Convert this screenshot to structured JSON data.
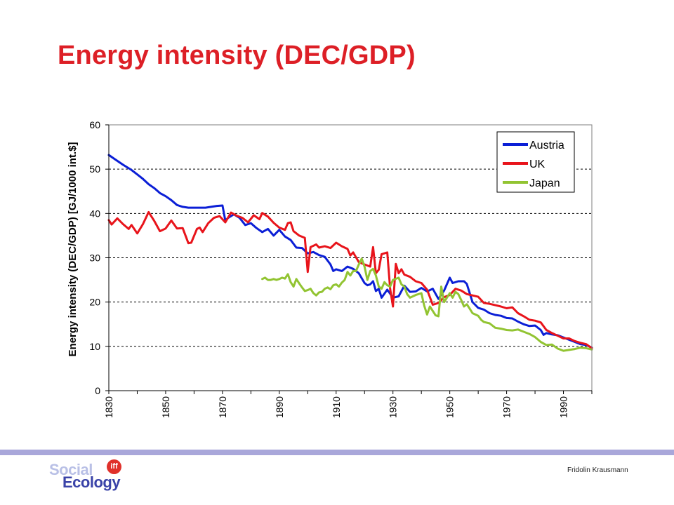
{
  "slide": {
    "title": "Energy intensity (DEC/GDP)",
    "author": "Fridolin Krausmann",
    "logo": {
      "line1": "Social",
      "line2": "Ecology",
      "badge": "iff"
    },
    "footer_bar_color": "#a9a7da",
    "title_color": "#dd1f26"
  },
  "chart_data": {
    "type": "line",
    "title": "",
    "xlabel": "",
    "ylabel": "Energy intensity (DEC/GDP) [GJ/1000 int.$]",
    "xlim": [
      1830,
      2000
    ],
    "ylim": [
      0,
      60
    ],
    "x_ticks": [
      1830,
      1850,
      1870,
      1890,
      1910,
      1930,
      1950,
      1970,
      1990
    ],
    "y_ticks": [
      0,
      10,
      20,
      30,
      40,
      50,
      60
    ],
    "grid": "horizontal-dashed",
    "legend": "top-right",
    "series": [
      {
        "name": "Austria",
        "color": "#0b1fd6",
        "points": [
          [
            1830,
            53.2
          ],
          [
            1832,
            52.3
          ],
          [
            1835,
            51.0
          ],
          [
            1838,
            49.8
          ],
          [
            1840,
            48.8
          ],
          [
            1842,
            47.8
          ],
          [
            1844,
            46.6
          ],
          [
            1846,
            45.7
          ],
          [
            1848,
            44.6
          ],
          [
            1850,
            43.9
          ],
          [
            1852,
            43.0
          ],
          [
            1854,
            41.9
          ],
          [
            1856,
            41.5
          ],
          [
            1858,
            41.3
          ],
          [
            1860,
            41.3
          ],
          [
            1862,
            41.3
          ],
          [
            1864,
            41.3
          ],
          [
            1866,
            41.5
          ],
          [
            1868,
            41.7
          ],
          [
            1870,
            41.8
          ],
          [
            1871,
            38.4
          ],
          [
            1872,
            39.0
          ],
          [
            1874,
            39.8
          ],
          [
            1876,
            39.0
          ],
          [
            1878,
            37.4
          ],
          [
            1880,
            37.8
          ],
          [
            1882,
            36.7
          ],
          [
            1884,
            35.8
          ],
          [
            1886,
            36.5
          ],
          [
            1888,
            35.0
          ],
          [
            1890,
            36.3
          ],
          [
            1892,
            34.8
          ],
          [
            1894,
            34.0
          ],
          [
            1896,
            32.3
          ],
          [
            1898,
            32.2
          ],
          [
            1900,
            31.0
          ],
          [
            1902,
            31.3
          ],
          [
            1904,
            30.6
          ],
          [
            1906,
            30.2
          ],
          [
            1908,
            28.5
          ],
          [
            1909,
            27.0
          ],
          [
            1910,
            27.4
          ],
          [
            1912,
            27.0
          ],
          [
            1914,
            28.0
          ],
          [
            1916,
            27.5
          ],
          [
            1918,
            26.5
          ],
          [
            1920,
            24.3
          ],
          [
            1921,
            23.8
          ],
          [
            1922,
            24.0
          ],
          [
            1923,
            24.7
          ],
          [
            1924,
            22.5
          ],
          [
            1925,
            23.0
          ],
          [
            1926,
            21.0
          ],
          [
            1928,
            22.8
          ],
          [
            1930,
            21.0
          ],
          [
            1932,
            21.3
          ],
          [
            1934,
            23.7
          ],
          [
            1936,
            22.3
          ],
          [
            1938,
            22.4
          ],
          [
            1940,
            23.2
          ],
          [
            1942,
            22.4
          ],
          [
            1944,
            23.0
          ],
          [
            1946,
            20.7
          ],
          [
            1948,
            22.6
          ],
          [
            1950,
            25.5
          ],
          [
            1951,
            24.3
          ],
          [
            1953,
            24.7
          ],
          [
            1955,
            24.7
          ],
          [
            1956,
            24.1
          ],
          [
            1958,
            20.0
          ],
          [
            1960,
            18.7
          ],
          [
            1962,
            18.3
          ],
          [
            1964,
            17.5
          ],
          [
            1966,
            17.1
          ],
          [
            1968,
            16.9
          ],
          [
            1970,
            16.4
          ],
          [
            1972,
            16.3
          ],
          [
            1974,
            15.6
          ],
          [
            1976,
            15.0
          ],
          [
            1978,
            14.6
          ],
          [
            1980,
            14.7
          ],
          [
            1982,
            13.7
          ],
          [
            1983,
            12.6
          ],
          [
            1984,
            13.0
          ],
          [
            1986,
            12.7
          ],
          [
            1988,
            12.5
          ],
          [
            1990,
            12.0
          ],
          [
            1992,
            11.5
          ],
          [
            1994,
            11.0
          ],
          [
            1996,
            10.5
          ],
          [
            1998,
            10.3
          ],
          [
            2000,
            9.7
          ]
        ]
      },
      {
        "name": "UK",
        "color": "#e8141b",
        "points": [
          [
            1830,
            38.5
          ],
          [
            1831,
            37.5
          ],
          [
            1833,
            38.9
          ],
          [
            1835,
            37.6
          ],
          [
            1837,
            36.5
          ],
          [
            1838,
            37.4
          ],
          [
            1840,
            35.5
          ],
          [
            1842,
            37.6
          ],
          [
            1844,
            40.3
          ],
          [
            1846,
            38.3
          ],
          [
            1848,
            36.0
          ],
          [
            1850,
            36.6
          ],
          [
            1852,
            38.4
          ],
          [
            1854,
            36.6
          ],
          [
            1856,
            36.7
          ],
          [
            1858,
            33.3
          ],
          [
            1859,
            33.4
          ],
          [
            1861,
            36.5
          ],
          [
            1862,
            36.8
          ],
          [
            1863,
            35.8
          ],
          [
            1865,
            37.8
          ],
          [
            1867,
            39.0
          ],
          [
            1869,
            39.4
          ],
          [
            1871,
            38.0
          ],
          [
            1873,
            40.2
          ],
          [
            1875,
            39.5
          ],
          [
            1877,
            39.0
          ],
          [
            1879,
            38.0
          ],
          [
            1881,
            39.6
          ],
          [
            1883,
            38.7
          ],
          [
            1884,
            40.1
          ],
          [
            1886,
            39.3
          ],
          [
            1888,
            37.9
          ],
          [
            1890,
            36.8
          ],
          [
            1892,
            36.3
          ],
          [
            1893,
            37.8
          ],
          [
            1894,
            38.0
          ],
          [
            1895,
            36.0
          ],
          [
            1897,
            35.0
          ],
          [
            1899,
            34.5
          ],
          [
            1900,
            26.8
          ],
          [
            1901,
            32.4
          ],
          [
            1903,
            33.0
          ],
          [
            1904,
            32.3
          ],
          [
            1906,
            32.6
          ],
          [
            1908,
            32.2
          ],
          [
            1910,
            33.4
          ],
          [
            1912,
            32.6
          ],
          [
            1914,
            32.0
          ],
          [
            1915,
            30.5
          ],
          [
            1916,
            31.2
          ],
          [
            1918,
            29.0
          ],
          [
            1920,
            28.5
          ],
          [
            1922,
            28.0
          ],
          [
            1923,
            32.4
          ],
          [
            1924,
            26.5
          ],
          [
            1925,
            27.3
          ],
          [
            1926,
            30.8
          ],
          [
            1928,
            31.2
          ],
          [
            1929,
            23.0
          ],
          [
            1930,
            19.0
          ],
          [
            1931,
            28.6
          ],
          [
            1932,
            26.5
          ],
          [
            1933,
            27.4
          ],
          [
            1934,
            26.2
          ],
          [
            1936,
            25.7
          ],
          [
            1938,
            24.7
          ],
          [
            1940,
            24.3
          ],
          [
            1942,
            22.8
          ],
          [
            1944,
            19.4
          ],
          [
            1946,
            19.8
          ],
          [
            1948,
            21.1
          ],
          [
            1950,
            21.6
          ],
          [
            1952,
            23.0
          ],
          [
            1954,
            22.6
          ],
          [
            1956,
            21.8
          ],
          [
            1958,
            21.5
          ],
          [
            1960,
            21.2
          ],
          [
            1962,
            19.8
          ],
          [
            1964,
            19.6
          ],
          [
            1966,
            19.3
          ],
          [
            1968,
            19.0
          ],
          [
            1970,
            18.6
          ],
          [
            1972,
            18.8
          ],
          [
            1974,
            17.5
          ],
          [
            1976,
            16.8
          ],
          [
            1978,
            16.0
          ],
          [
            1980,
            15.8
          ],
          [
            1982,
            15.4
          ],
          [
            1984,
            13.7
          ],
          [
            1986,
            13.0
          ],
          [
            1988,
            12.4
          ],
          [
            1990,
            11.8
          ],
          [
            1992,
            11.8
          ],
          [
            1994,
            11.2
          ],
          [
            1996,
            10.8
          ],
          [
            1998,
            10.5
          ],
          [
            2000,
            9.6
          ]
        ]
      },
      {
        "name": "Japan",
        "color": "#92c432",
        "points": [
          [
            1884,
            25.2
          ],
          [
            1885,
            25.5
          ],
          [
            1886,
            25.0
          ],
          [
            1887,
            25.0
          ],
          [
            1888,
            25.2
          ],
          [
            1889,
            25.0
          ],
          [
            1890,
            25.2
          ],
          [
            1891,
            25.5
          ],
          [
            1892,
            25.3
          ],
          [
            1893,
            26.3
          ],
          [
            1894,
            24.5
          ],
          [
            1895,
            23.5
          ],
          [
            1896,
            25.2
          ],
          [
            1897,
            24.2
          ],
          [
            1898,
            23.3
          ],
          [
            1899,
            22.5
          ],
          [
            1900,
            22.7
          ],
          [
            1901,
            23.0
          ],
          [
            1902,
            22.0
          ],
          [
            1903,
            21.5
          ],
          [
            1904,
            22.2
          ],
          [
            1905,
            22.3
          ],
          [
            1906,
            23.0
          ],
          [
            1907,
            23.3
          ],
          [
            1908,
            22.9
          ],
          [
            1909,
            23.8
          ],
          [
            1910,
            24.0
          ],
          [
            1911,
            23.5
          ],
          [
            1912,
            24.4
          ],
          [
            1913,
            25.0
          ],
          [
            1914,
            26.8
          ],
          [
            1915,
            26.0
          ],
          [
            1916,
            27.0
          ],
          [
            1917,
            27.0
          ],
          [
            1918,
            28.5
          ],
          [
            1919,
            29.8
          ],
          [
            1920,
            28.0
          ],
          [
            1921,
            25.0
          ],
          [
            1922,
            27.0
          ],
          [
            1923,
            27.5
          ],
          [
            1924,
            26.0
          ],
          [
            1925,
            23.5
          ],
          [
            1926,
            23.0
          ],
          [
            1927,
            24.5
          ],
          [
            1928,
            23.8
          ],
          [
            1929,
            23.5
          ],
          [
            1930,
            25.0
          ],
          [
            1932,
            25.5
          ],
          [
            1933,
            24.0
          ],
          [
            1934,
            23.5
          ],
          [
            1935,
            21.8
          ],
          [
            1936,
            21.0
          ],
          [
            1938,
            21.6
          ],
          [
            1940,
            22.0
          ],
          [
            1941,
            19.2
          ],
          [
            1942,
            17.2
          ],
          [
            1943,
            19.0
          ],
          [
            1944,
            18.0
          ],
          [
            1945,
            17.0
          ],
          [
            1946,
            16.8
          ],
          [
            1947,
            23.5
          ],
          [
            1948,
            20.0
          ],
          [
            1950,
            22.0
          ],
          [
            1951,
            21.0
          ],
          [
            1952,
            22.3
          ],
          [
            1953,
            21.8
          ],
          [
            1954,
            20.5
          ],
          [
            1955,
            19.0
          ],
          [
            1956,
            19.5
          ],
          [
            1957,
            18.5
          ],
          [
            1958,
            17.5
          ],
          [
            1960,
            16.9
          ],
          [
            1961,
            16.0
          ],
          [
            1962,
            15.5
          ],
          [
            1964,
            15.2
          ],
          [
            1966,
            14.2
          ],
          [
            1968,
            14.0
          ],
          [
            1970,
            13.7
          ],
          [
            1972,
            13.6
          ],
          [
            1974,
            13.8
          ],
          [
            1976,
            13.3
          ],
          [
            1978,
            12.8
          ],
          [
            1980,
            12.1
          ],
          [
            1982,
            11.0
          ],
          [
            1984,
            10.3
          ],
          [
            1986,
            10.4
          ],
          [
            1988,
            9.5
          ],
          [
            1990,
            9.0
          ],
          [
            1992,
            9.2
          ],
          [
            1994,
            9.4
          ],
          [
            1996,
            9.7
          ],
          [
            1998,
            9.6
          ],
          [
            2000,
            9.3
          ]
        ]
      }
    ]
  }
}
